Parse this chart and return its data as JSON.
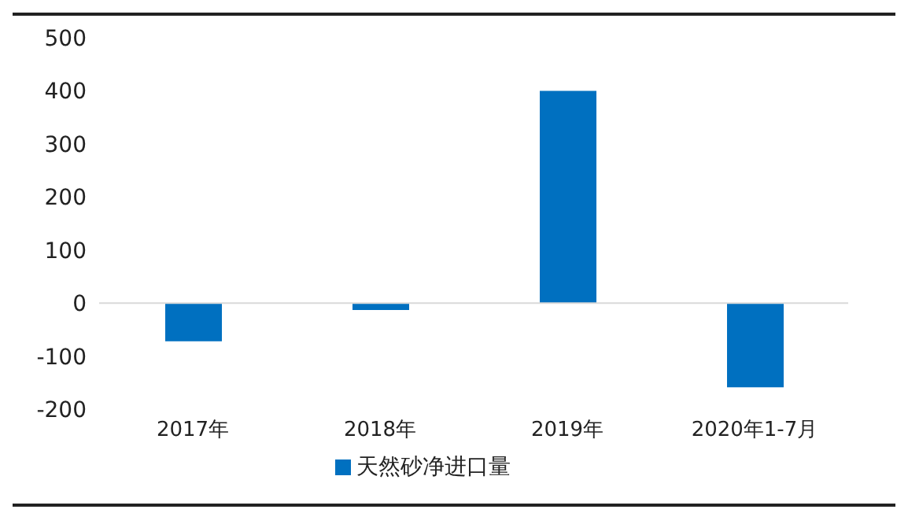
{
  "chart_data": {
    "type": "bar",
    "categories": [
      "2017年",
      "2018年",
      "2019年",
      "2020年1-7月"
    ],
    "series": [
      {
        "name": "天然砂净进口量",
        "color": "#0070c0",
        "values": [
          -72,
          -13,
          400,
          -159
        ]
      }
    ],
    "ylim": [
      -200,
      500
    ],
    "yticks": [
      -200,
      -100,
      0,
      100,
      200,
      300,
      400,
      500
    ],
    "grid": false,
    "legend": "bottom",
    "ref_lines": [
      {
        "axis": "y",
        "value": 0,
        "color": "#d9d9d9"
      }
    ]
  }
}
